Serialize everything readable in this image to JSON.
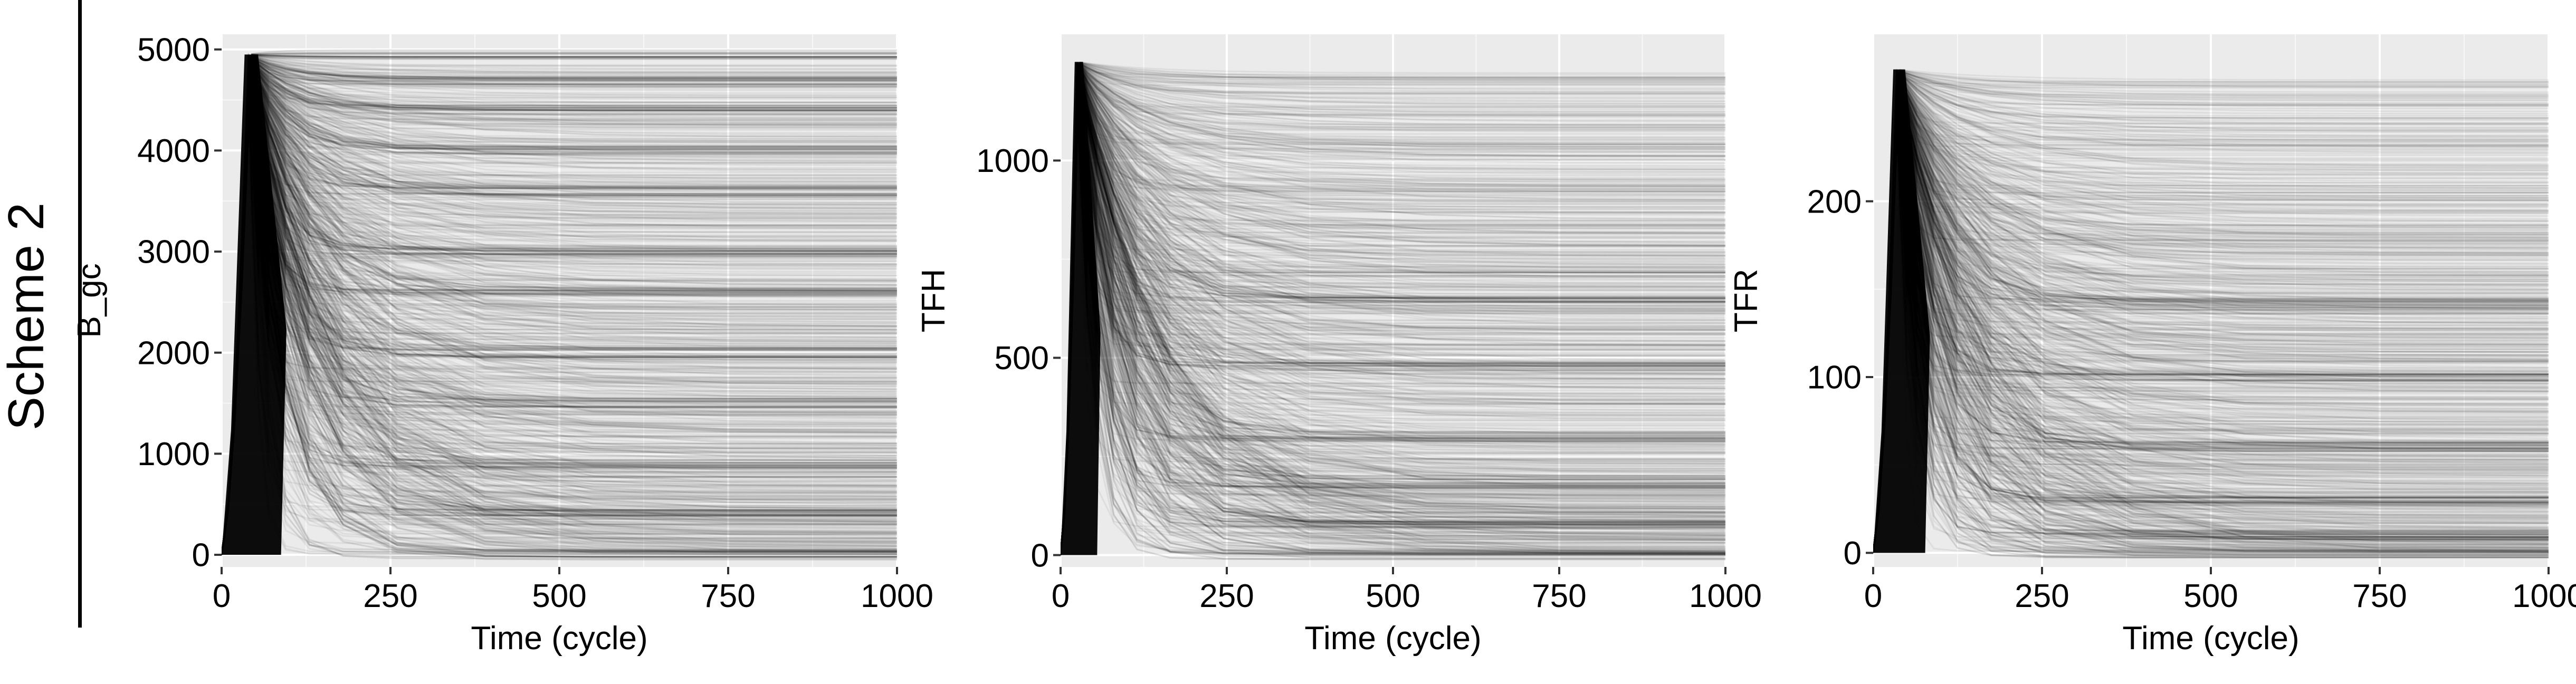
{
  "row_label": "Scheme 2",
  "chart_data": [
    {
      "type": "line",
      "ylabel": "B_gc",
      "xlabel": "Time (cycle)",
      "xlim": [
        0,
        1000
      ],
      "ylim": [
        -120,
        5150
      ],
      "xticks": [
        0,
        250,
        500,
        750,
        1000
      ],
      "yticks": [
        0,
        1000,
        2000,
        3000,
        4000,
        5000
      ],
      "peak_time": 40,
      "max_value": 4950,
      "dense_levels": [
        4950,
        4700,
        4400,
        4000,
        3600,
        3000,
        2600,
        2000,
        1500,
        900,
        400,
        0
      ],
      "grid": true,
      "background": "#ebebeb",
      "line_color": "#000000"
    },
    {
      "type": "line",
      "ylabel": "TFH",
      "xlabel": "Time (cycle)",
      "xlim": [
        0,
        1000
      ],
      "ylim": [
        -30,
        1320
      ],
      "xticks": [
        0,
        250,
        500,
        750,
        1000
      ],
      "yticks": [
        0,
        500,
        1000
      ],
      "peak_time": 25,
      "max_value": 1250,
      "dense_levels": [
        650,
        480,
        300,
        180,
        80,
        0
      ],
      "grid": true,
      "background": "#ebebeb",
      "line_color": "#000000"
    },
    {
      "type": "line",
      "ylabel": "TFR",
      "xlabel": "Time (cycle)",
      "xlim": [
        0,
        1000
      ],
      "ylim": [
        -8,
        295
      ],
      "xticks": [
        0,
        250,
        500,
        750,
        1000
      ],
      "yticks": [
        0,
        100,
        200
      ],
      "peak_time": 35,
      "max_value": 275,
      "dense_levels": [
        142,
        100,
        60,
        30,
        10,
        0
      ],
      "grid": true,
      "background": "#ebebeb",
      "line_color": "#000000"
    }
  ]
}
